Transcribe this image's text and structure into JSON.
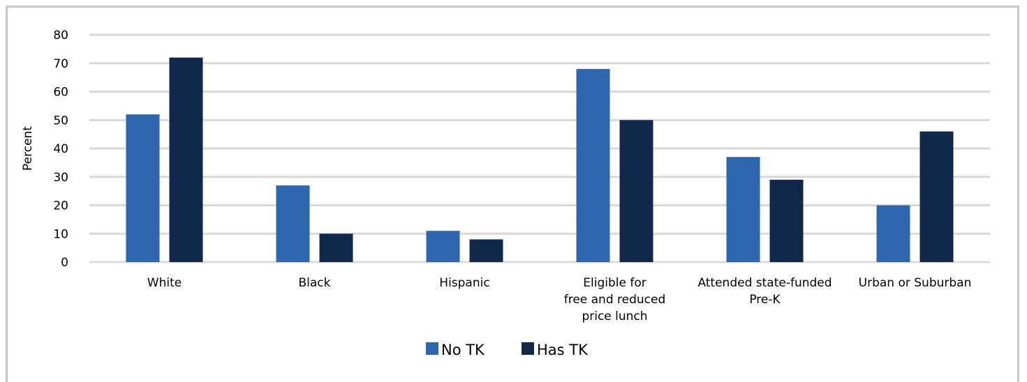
{
  "chart_data": {
    "type": "bar",
    "ylabel": "Percent",
    "xlabel": "",
    "ylim": [
      0,
      80
    ],
    "yticks": [
      0,
      10,
      20,
      30,
      40,
      50,
      60,
      70,
      80
    ],
    "grid": true,
    "legend_position": "bottom",
    "categories": [
      [
        "White"
      ],
      [
        "Black"
      ],
      [
        "Hispanic"
      ],
      [
        "Eligible for",
        "free and reduced",
        "price lunch"
      ],
      [
        "Attended state-funded",
        "Pre-K"
      ],
      [
        "Urban or Suburban"
      ]
    ],
    "series": [
      {
        "name": "No TK",
        "color": "#2e67ad",
        "values": [
          52,
          27,
          11,
          68,
          37,
          20
        ]
      },
      {
        "name": "Has TK",
        "color": "#12284b",
        "values": [
          72,
          10,
          8,
          50,
          29,
          46
        ]
      }
    ],
    "gridline_color": "#d9d9d9"
  }
}
